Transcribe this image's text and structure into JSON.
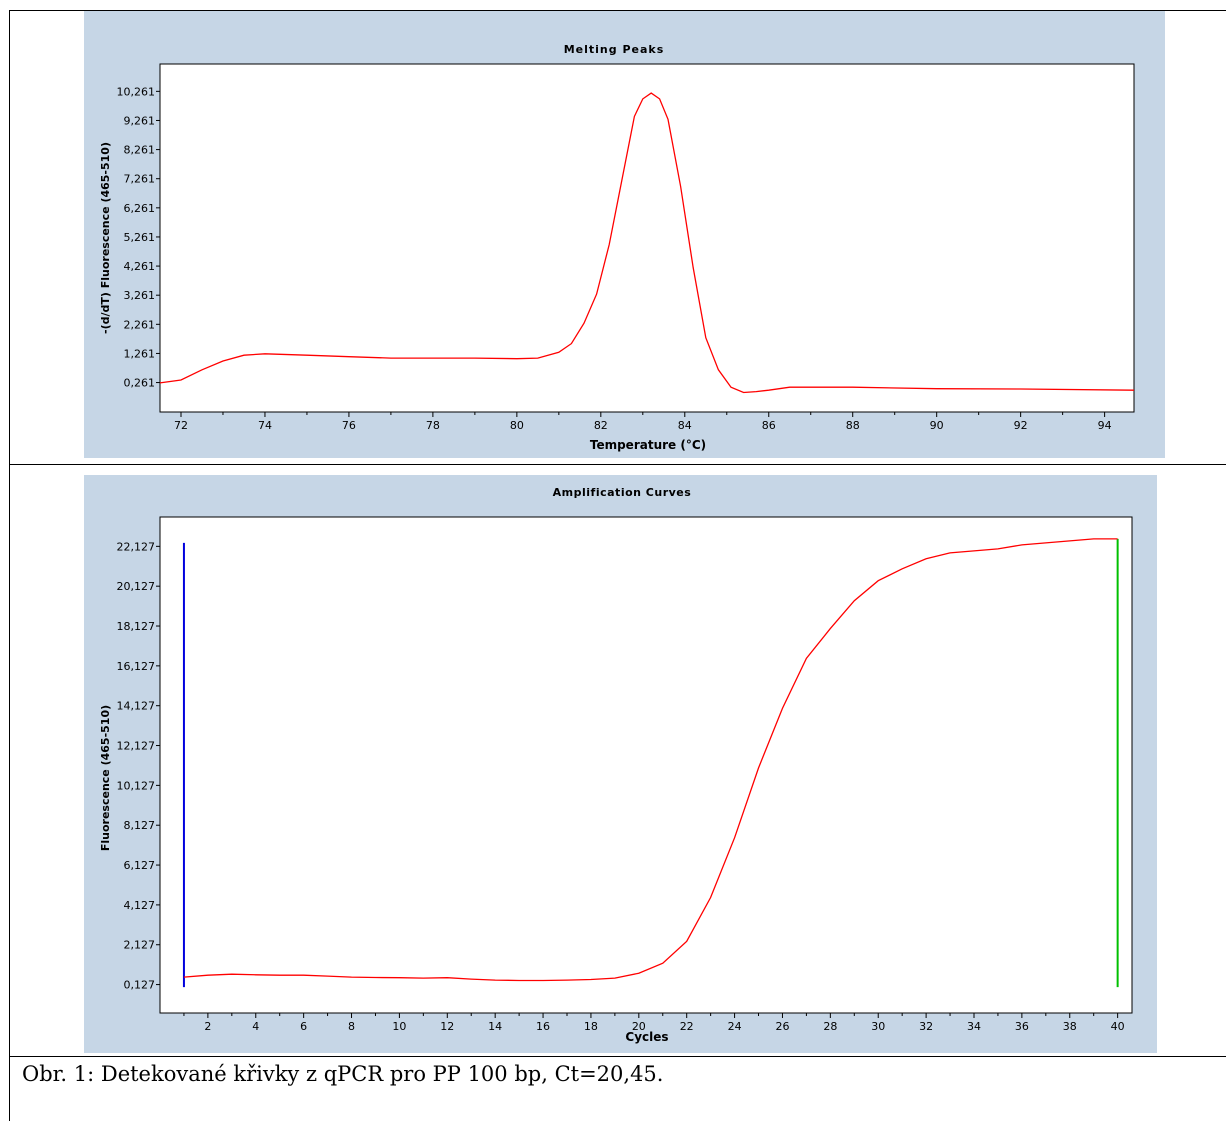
{
  "caption": "Obr. 1: Detekované křivky z qPCR pro PP 100 bp, Ct=20,45.",
  "colors": {
    "panel_bg": "#c6d6e6",
    "curve": "#ff0000",
    "start_marker": "#0000dd",
    "end_marker": "#00c000"
  },
  "chart_data": [
    {
      "type": "line",
      "title": "Melting Peaks",
      "xlabel": "Temperature (°C)",
      "ylabel": "-(d/dT) Fluorescence (465-510)",
      "xlim": [
        71.5,
        94.7
      ],
      "ylim": [
        -0.75,
        11.2
      ],
      "xticks": [
        72,
        74,
        76,
        78,
        80,
        82,
        84,
        86,
        88,
        90,
        92,
        94
      ],
      "xtick_labels": [
        "72",
        "74",
        "76",
        "78",
        "80",
        "82",
        "84",
        "86",
        "88",
        "90",
        "92",
        "94"
      ],
      "yticks": [
        0.261,
        1.261,
        2.261,
        3.261,
        4.261,
        5.261,
        6.261,
        7.261,
        8.261,
        9.261,
        10.261
      ],
      "ytick_labels": [
        "0,261",
        "1,261",
        "2,261",
        "3,261",
        "4,261",
        "5,261",
        "6,261",
        "7,261",
        "8,261",
        "9,261",
        "10,261"
      ],
      "series": [
        {
          "x": [
            71.5,
            72.0,
            72.5,
            73.0,
            73.5,
            74.0,
            75.0,
            76.0,
            77.0,
            78.0,
            79.0,
            80.0,
            80.5,
            81.0,
            81.3,
            81.6,
            81.9,
            82.2,
            82.5,
            82.8,
            83.0,
            83.2,
            83.4,
            83.6,
            83.9,
            84.2,
            84.5,
            84.8,
            85.1,
            85.4,
            85.7,
            86.0,
            86.5,
            87.0,
            88.0,
            90.0,
            92.0,
            94.7
          ],
          "y": [
            0.25,
            0.35,
            0.7,
            1.0,
            1.2,
            1.25,
            1.2,
            1.15,
            1.1,
            1.1,
            1.1,
            1.08,
            1.1,
            1.3,
            1.6,
            2.3,
            3.3,
            5.0,
            7.2,
            9.4,
            10.0,
            10.2,
            10.0,
            9.3,
            7.0,
            4.2,
            1.8,
            0.7,
            0.1,
            -0.08,
            -0.05,
            0.0,
            0.1,
            0.1,
            0.1,
            0.05,
            0.04,
            0.0
          ]
        }
      ]
    },
    {
      "type": "line",
      "title": "Amplification Curves",
      "xlabel": "Cycles",
      "ylabel": "Fluorescence (465-510)",
      "xlim": [
        0.0,
        40.6
      ],
      "ylim": [
        -1.3,
        23.6
      ],
      "xticks": [
        2,
        4,
        6,
        8,
        10,
        12,
        14,
        16,
        18,
        20,
        22,
        24,
        26,
        28,
        30,
        32,
        34,
        36,
        38,
        40
      ],
      "xtick_labels": [
        "2",
        "4",
        "6",
        "8",
        "10",
        "12",
        "14",
        "16",
        "18",
        "20",
        "22",
        "24",
        "26",
        "28",
        "30",
        "32",
        "34",
        "36",
        "38",
        "40"
      ],
      "yticks": [
        0.127,
        2.127,
        4.127,
        6.127,
        8.127,
        10.127,
        12.127,
        14.127,
        16.127,
        18.127,
        20.127,
        22.127
      ],
      "ytick_labels": [
        "0,127",
        "2,127",
        "4,127",
        "6,127",
        "8,127",
        "10,127",
        "12,127",
        "14,127",
        "16,127",
        "18,127",
        "20,127",
        "22,127"
      ],
      "markers": [
        {
          "x": 1,
          "y_from": 0.0,
          "y_to": 22.3,
          "color": "#0000dd"
        },
        {
          "x": 40,
          "y_from": 0.0,
          "y_to": 22.5,
          "color": "#00c000"
        }
      ],
      "series": [
        {
          "x": [
            1,
            2,
            3,
            4,
            5,
            6,
            7,
            8,
            9,
            10,
            11,
            12,
            13,
            14,
            15,
            16,
            17,
            18,
            19,
            20,
            21,
            22,
            23,
            24,
            25,
            26,
            27,
            28,
            29,
            30,
            31,
            32,
            33,
            34,
            35,
            36,
            37,
            38,
            39,
            40
          ],
          "y": [
            0.5,
            0.6,
            0.65,
            0.62,
            0.6,
            0.6,
            0.55,
            0.5,
            0.48,
            0.47,
            0.45,
            0.47,
            0.4,
            0.35,
            0.33,
            0.33,
            0.35,
            0.38,
            0.45,
            0.7,
            1.2,
            2.3,
            4.5,
            7.5,
            11.0,
            14.0,
            16.5,
            18.0,
            19.4,
            20.4,
            21.0,
            21.5,
            21.8,
            21.9,
            22.0,
            22.2,
            22.3,
            22.4,
            22.5,
            22.5
          ]
        }
      ]
    }
  ]
}
